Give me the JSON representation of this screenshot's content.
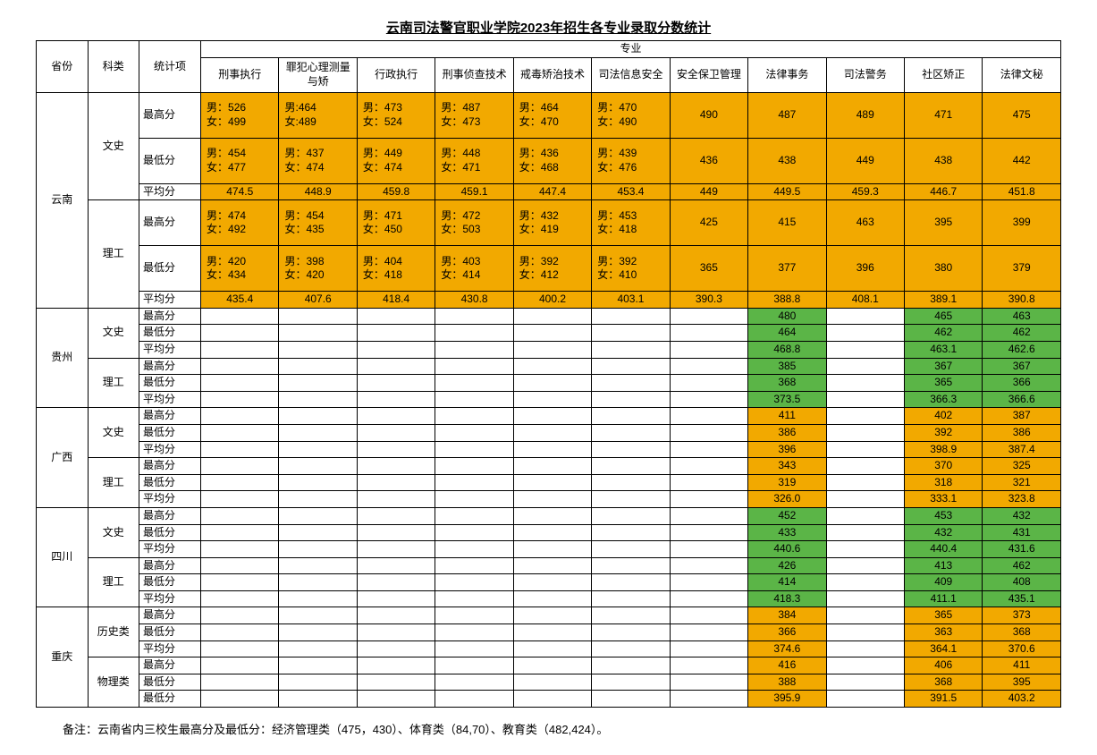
{
  "title": "云南司法警官职业学院2023年招生各专业录取分数统计",
  "note": "备注：云南省内三校生最高分及最低分：经济管理类（475，430）、体育类（84,70）、教育类（482,424）。",
  "colors": {
    "orange": "#f2a900",
    "green": "#5bb547",
    "border": "#000000",
    "bg": "#ffffff"
  },
  "header": {
    "province": "省份",
    "subject": "科类",
    "stat": "统计项",
    "majors_group": "专业",
    "majors": [
      "刑事执行",
      "罪犯心理测量与矫",
      "行政执行",
      "刑事侦查技术",
      "戒毒矫治技术",
      "司法信息安全",
      "安全保卫管理",
      "法律事务",
      "司法警务",
      "社区矫正",
      "法律文秘"
    ]
  },
  "stat_labels": {
    "max": "最高分",
    "min": "最低分",
    "avg": "平均分"
  },
  "subject_labels": {
    "wenshi": "文史",
    "ligong": "理工",
    "lishi": "历史类",
    "wuli": "物理类"
  },
  "yunnan": {
    "name": "云南",
    "wenshi": {
      "max": [
        "男：526\n女：499",
        "男:464\n女:489",
        "男：473\n女：524",
        "男：487\n女：473",
        "男：464\n女：470",
        "男：470\n女：490",
        "490",
        "487",
        "489",
        "471",
        "475"
      ],
      "min": [
        "男：454\n女：477",
        "男：437\n女：474",
        "男：449\n女：474",
        "男：448\n女：471",
        "男：436\n女：468",
        "男：439\n女：476",
        "436",
        "438",
        "449",
        "438",
        "442"
      ],
      "avg": [
        "474.5",
        "448.9",
        "459.8",
        "459.1",
        "447.4",
        "453.4",
        "449",
        "449.5",
        "459.3",
        "446.7",
        "451.8"
      ]
    },
    "ligong": {
      "max": [
        "男：474\n女：492",
        "男：454\n女：435",
        "男：471\n女：450",
        "男：472\n女：503",
        "男：432\n女：419",
        "男：453\n女：418",
        "425",
        "415",
        "463",
        "395",
        "399"
      ],
      "min": [
        "男：420\n女：434",
        "男：398\n女：420",
        "男：404\n女：418",
        "男：403\n女：414",
        "男：392\n女：412",
        "男：392\n女：410",
        "365",
        "377",
        "396",
        "380",
        "379"
      ],
      "avg": [
        "435.4",
        "407.6",
        "418.4",
        "430.8",
        "400.2",
        "403.1",
        "390.3",
        "388.8",
        "408.1",
        "389.1",
        "390.8"
      ]
    }
  },
  "guizhou": {
    "name": "贵州",
    "wenshi": {
      "max": [
        "",
        "",
        "",
        "",
        "",
        "",
        "",
        "480",
        "",
        "465",
        "463"
      ],
      "min": [
        "",
        "",
        "",
        "",
        "",
        "",
        "",
        "464",
        "",
        "462",
        "462"
      ],
      "avg": [
        "",
        "",
        "",
        "",
        "",
        "",
        "",
        "468.8",
        "",
        "463.1",
        "462.6"
      ]
    },
    "ligong": {
      "max": [
        "",
        "",
        "",
        "",
        "",
        "",
        "",
        "385",
        "",
        "367",
        "367"
      ],
      "min": [
        "",
        "",
        "",
        "",
        "",
        "",
        "",
        "368",
        "",
        "365",
        "366"
      ],
      "avg": [
        "",
        "",
        "",
        "",
        "",
        "",
        "",
        "373.5",
        "",
        "366.3",
        "366.6"
      ]
    }
  },
  "guangxi": {
    "name": "广西",
    "wenshi": {
      "max": [
        "",
        "",
        "",
        "",
        "",
        "",
        "",
        "411",
        "",
        "402",
        "387"
      ],
      "min": [
        "",
        "",
        "",
        "",
        "",
        "",
        "",
        "386",
        "",
        "392",
        "386"
      ],
      "avg": [
        "",
        "",
        "",
        "",
        "",
        "",
        "",
        "396",
        "",
        "398.9",
        "387.4"
      ]
    },
    "ligong": {
      "max": [
        "",
        "",
        "",
        "",
        "",
        "",
        "",
        "343",
        "",
        "370",
        "325"
      ],
      "min": [
        "",
        "",
        "",
        "",
        "",
        "",
        "",
        "319",
        "",
        "318",
        "321"
      ],
      "avg": [
        "",
        "",
        "",
        "",
        "",
        "",
        "",
        "326.0",
        "",
        "333.1",
        "323.8"
      ]
    }
  },
  "sichuan": {
    "name": "四川",
    "wenshi": {
      "max": [
        "",
        "",
        "",
        "",
        "",
        "",
        "",
        "452",
        "",
        "453",
        "432"
      ],
      "min": [
        "",
        "",
        "",
        "",
        "",
        "",
        "",
        "433",
        "",
        "432",
        "431"
      ],
      "avg": [
        "",
        "",
        "",
        "",
        "",
        "",
        "",
        "440.6",
        "",
        "440.4",
        "431.6"
      ]
    },
    "ligong": {
      "max": [
        "",
        "",
        "",
        "",
        "",
        "",
        "",
        "426",
        "",
        "413",
        "462"
      ],
      "min": [
        "",
        "",
        "",
        "",
        "",
        "",
        "",
        "414",
        "",
        "409",
        "408"
      ],
      "avg": [
        "",
        "",
        "",
        "",
        "",
        "",
        "",
        "418.3",
        "",
        "411.1",
        "435.1"
      ]
    }
  },
  "chongqing": {
    "name": "重庆",
    "lishi": {
      "max": [
        "",
        "",
        "",
        "",
        "",
        "",
        "",
        "384",
        "",
        "365",
        "373"
      ],
      "min": [
        "",
        "",
        "",
        "",
        "",
        "",
        "",
        "366",
        "",
        "363",
        "368"
      ],
      "avg": [
        "",
        "",
        "",
        "",
        "",
        "",
        "",
        "374.6",
        "",
        "364.1",
        "370.6"
      ]
    },
    "wuli": {
      "max": [
        "",
        "",
        "",
        "",
        "",
        "",
        "",
        "416",
        "",
        "406",
        "411"
      ],
      "min": [
        "",
        "",
        "",
        "",
        "",
        "",
        "",
        "388",
        "",
        "368",
        "395"
      ],
      "min2": [
        "",
        "",
        "",
        "",
        "",
        "",
        "",
        "395.9",
        "",
        "391.5",
        "403.2"
      ]
    }
  },
  "highlight_cols": {
    "green": [
      7,
      9,
      10
    ],
    "orange": [
      7,
      9,
      10
    ]
  }
}
